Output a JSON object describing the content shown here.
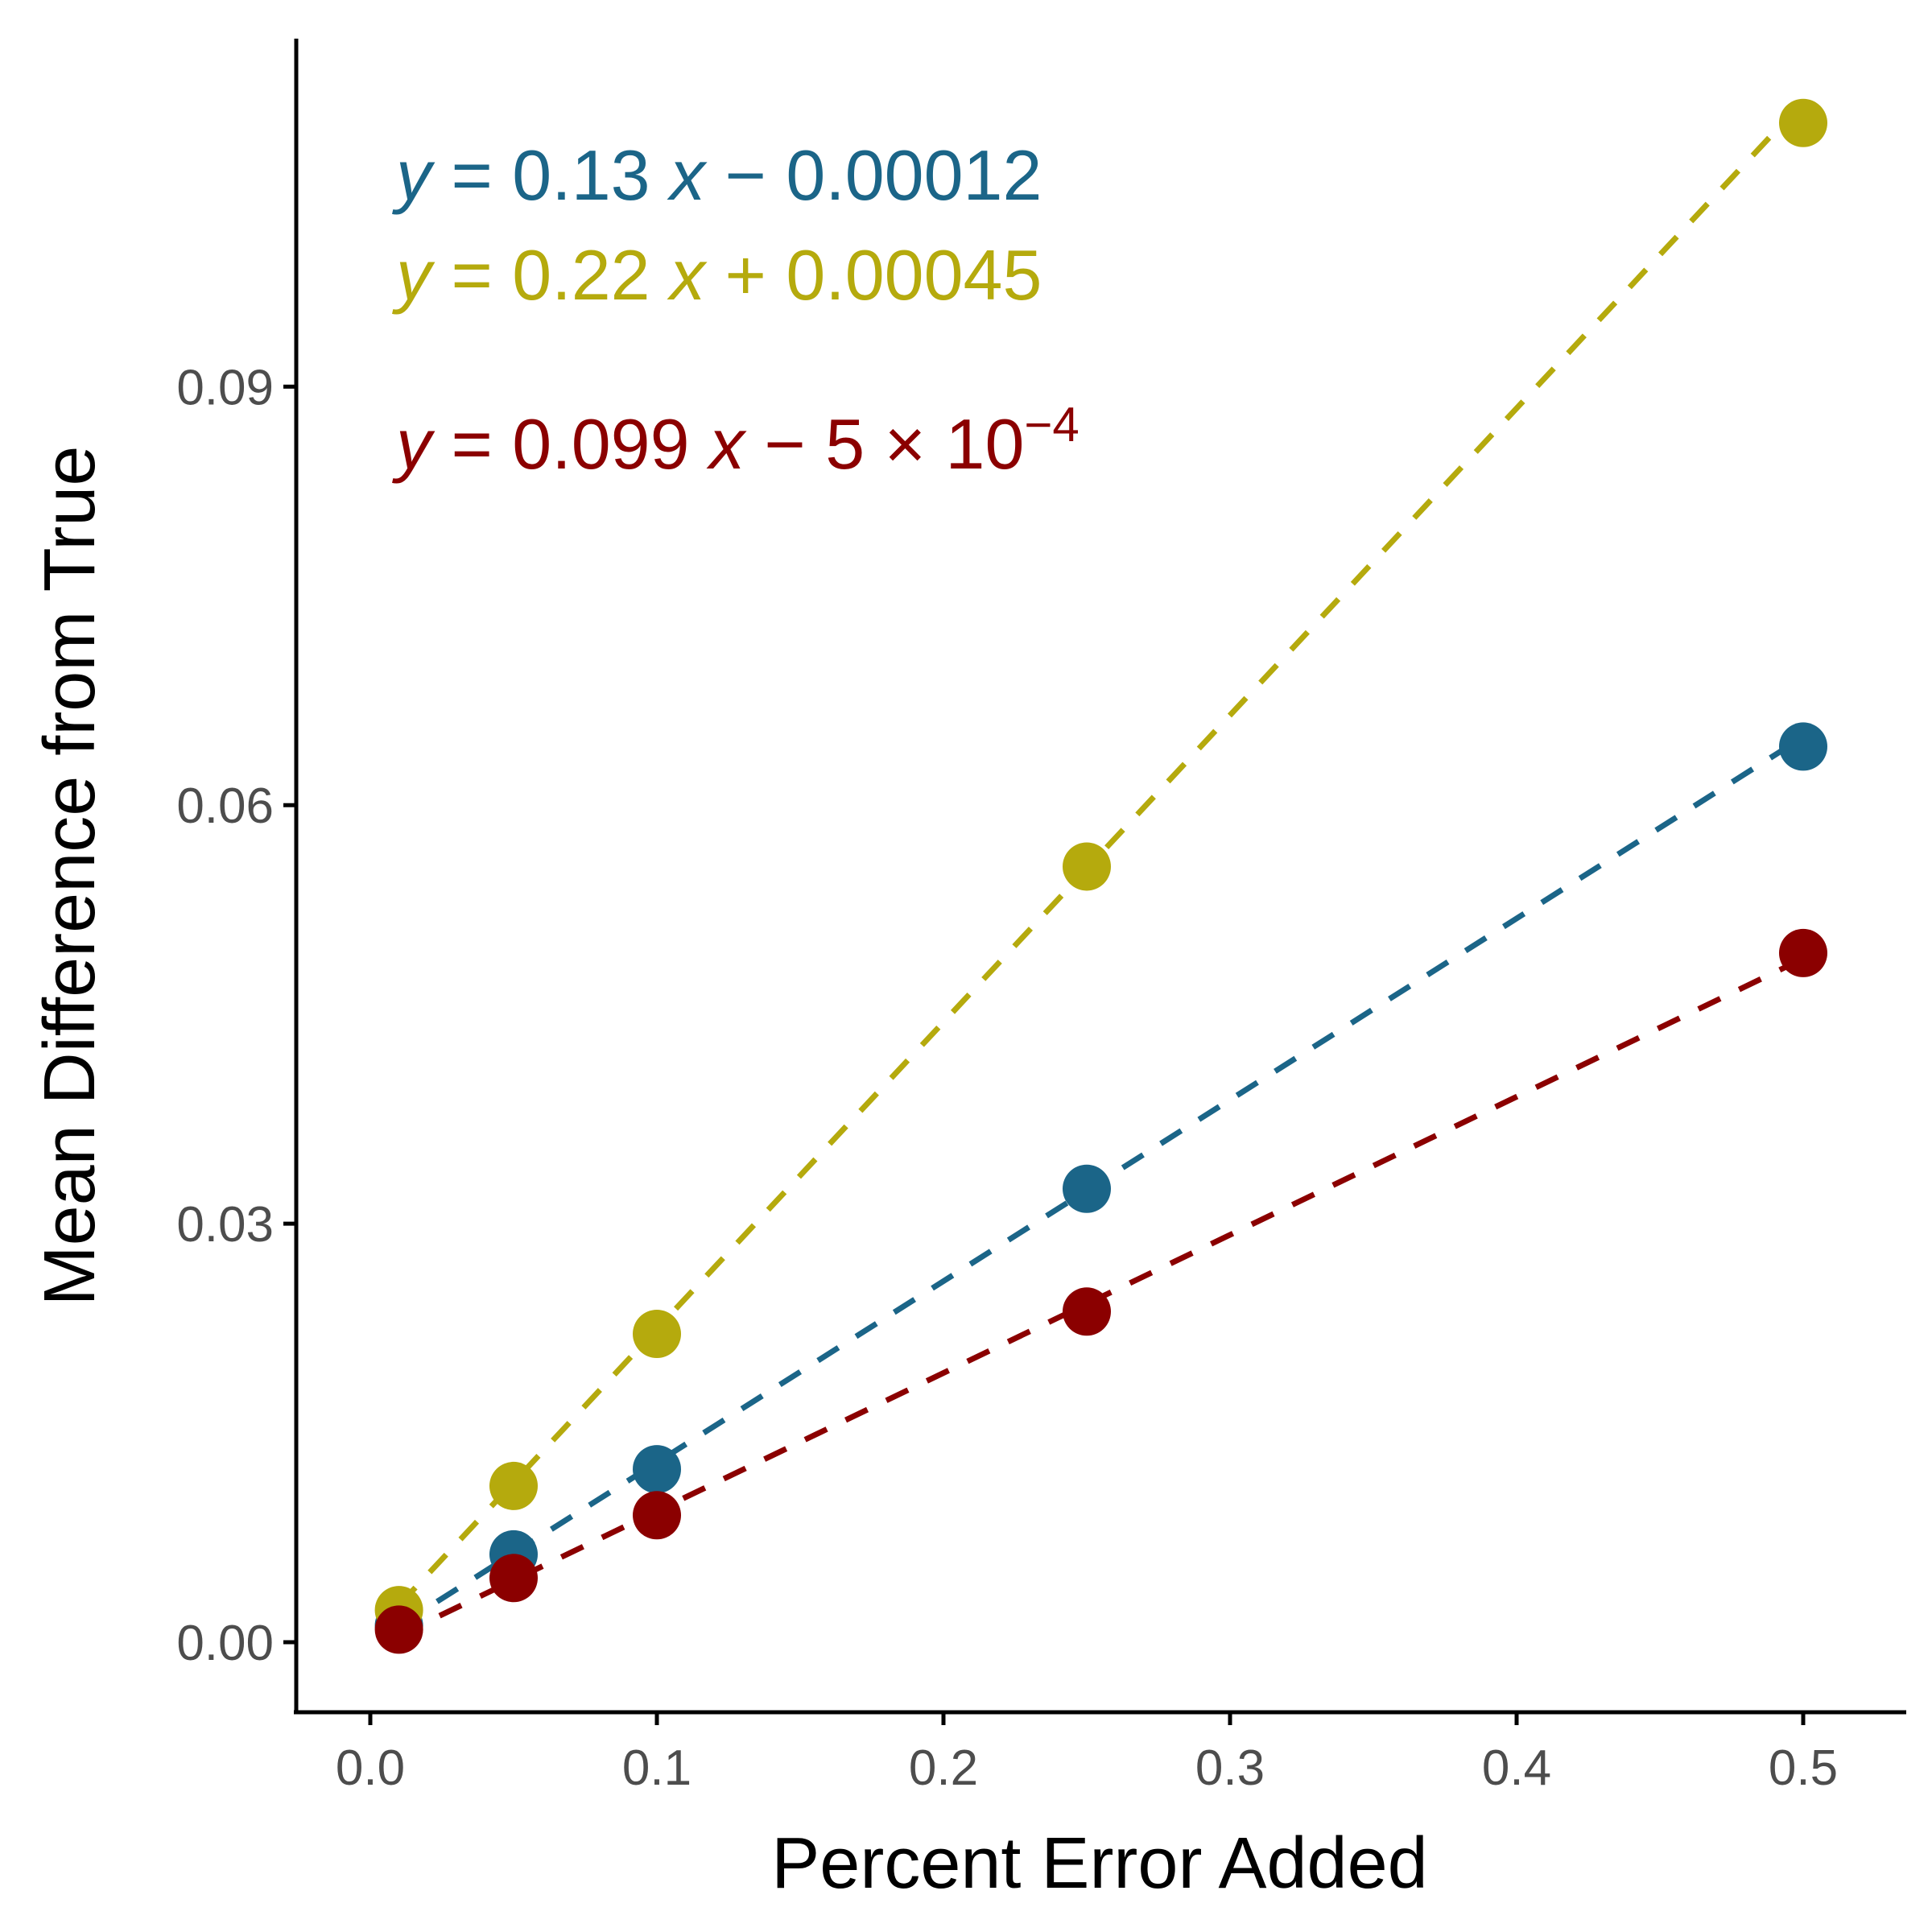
{
  "chart_data": {
    "type": "scatter",
    "xlabel": "Percent Error Added",
    "ylabel": "Mean Difference from True",
    "xlim": [
      -0.025,
      0.535
    ],
    "ylim": [
      -0.005,
      0.1135
    ],
    "x_ticks": [
      0.0,
      0.1,
      0.2,
      0.3,
      0.4,
      0.5
    ],
    "x_tick_labels": [
      "0.0",
      "0.1",
      "0.2",
      "0.3",
      "0.4",
      "0.5"
    ],
    "y_ticks": [
      0.0,
      0.03,
      0.06,
      0.09
    ],
    "y_tick_labels": [
      "0.00",
      "0.03",
      "0.06",
      "0.09"
    ],
    "grid": false,
    "legend": "none",
    "series": [
      {
        "color": "#1b6588",
        "x": [
          0.01,
          0.05,
          0.1,
          0.25,
          0.5
        ],
        "y": [
          0.0012,
          0.0063,
          0.0124,
          0.0325,
          0.0642
        ],
        "fit": {
          "slope": 0.13,
          "intercept": -0.00012
        },
        "equation": {
          "y": "y",
          "eq": " = ",
          "slope": "0.13",
          "x": "x",
          "op": " − ",
          "intercept": "0.00012"
        }
      },
      {
        "color": "#b5aa0d",
        "x": [
          0.01,
          0.05,
          0.1,
          0.25,
          0.5
        ],
        "y": [
          0.0023,
          0.0112,
          0.0221,
          0.0556,
          0.1089
        ],
        "fit": {
          "slope": 0.22,
          "intercept": 0.00045
        },
        "equation": {
          "y": "y",
          "eq": " = ",
          "slope": "0.22",
          "x": "x",
          "op": " + ",
          "intercept": "0.00045"
        }
      },
      {
        "color": "#8b0000",
        "x": [
          0.01,
          0.05,
          0.1,
          0.25,
          0.5
        ],
        "y": [
          0.0009,
          0.0046,
          0.0091,
          0.0237,
          0.0494
        ],
        "fit": {
          "slope": 0.099,
          "intercept": -0.0005
        },
        "equation": {
          "y": "y",
          "eq": " = ",
          "slope": "0.099",
          "x": "x",
          "op": " − ",
          "intercept": "5 × 10",
          "exp": "−4"
        }
      }
    ]
  }
}
